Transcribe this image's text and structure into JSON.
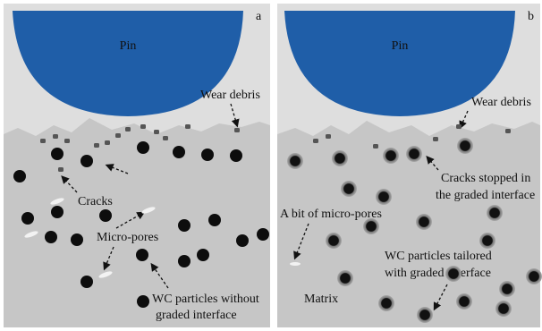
{
  "panels": [
    {
      "label": "a",
      "pin": "Pin",
      "wear_debris": "Wear debris",
      "cracks": "Cracks",
      "micro_pores": "Micro-pores",
      "wc_particles": [
        "WC particles without",
        "graded interface"
      ]
    },
    {
      "label": "b",
      "pin": "Pin",
      "wear_debris": "Wear debris",
      "cracks": [
        "Cracks stopped in",
        "the graded interface"
      ],
      "micro_pores": "A bit of micro-pores",
      "wc_particles": [
        "WC particles tailored",
        "with graded interface"
      ],
      "matrix": "Matrix"
    }
  ]
}
